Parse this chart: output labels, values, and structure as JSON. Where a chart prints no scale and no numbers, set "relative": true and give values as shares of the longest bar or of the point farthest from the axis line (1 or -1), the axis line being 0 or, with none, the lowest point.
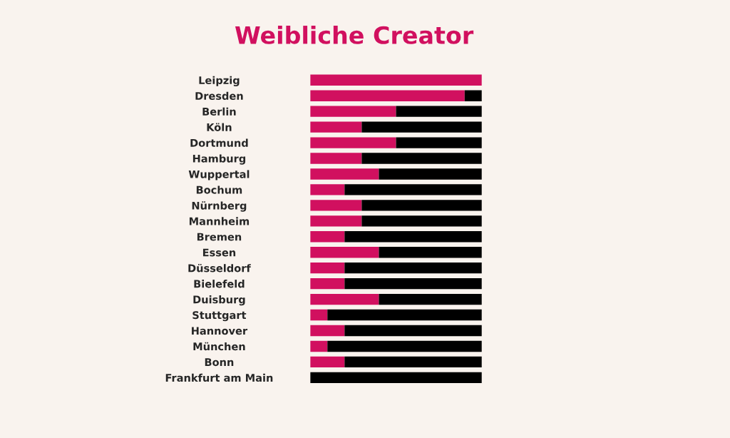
{
  "chart_data": {
    "type": "bar",
    "title": "Weibliche Creator",
    "orientation": "horizontal",
    "stacked": true,
    "relative": true,
    "categories": [
      "Leipzig",
      "Dresden",
      "Berlin",
      "Köln",
      "Dortmund",
      "Hamburg",
      "Wuppertal",
      "Bochum",
      "Nürnberg",
      "Mannheim",
      "Bremen",
      "Essen",
      "Düsseldorf",
      "Bielefeld",
      "Duisburg",
      "Stuttgart",
      "Hannover",
      "München",
      "Bonn",
      "Frankfurt am Main"
    ],
    "series": [
      {
        "color": "#d1105f",
        "values": [
          1.0,
          0.9,
          0.5,
          0.3,
          0.5,
          0.3,
          0.4,
          0.2,
          0.3,
          0.3,
          0.2,
          0.4,
          0.2,
          0.2,
          0.4,
          0.1,
          0.2,
          0.1,
          0.2,
          0.0
        ]
      },
      {
        "color": "#000000",
        "values": [
          0.0,
          0.1,
          0.5,
          0.7,
          0.5,
          0.7,
          0.6,
          0.8,
          0.7,
          0.7,
          0.8,
          0.6,
          0.8,
          0.8,
          0.6,
          0.9,
          0.8,
          0.9,
          0.8,
          1.0
        ]
      }
    ],
    "legend": false
  }
}
